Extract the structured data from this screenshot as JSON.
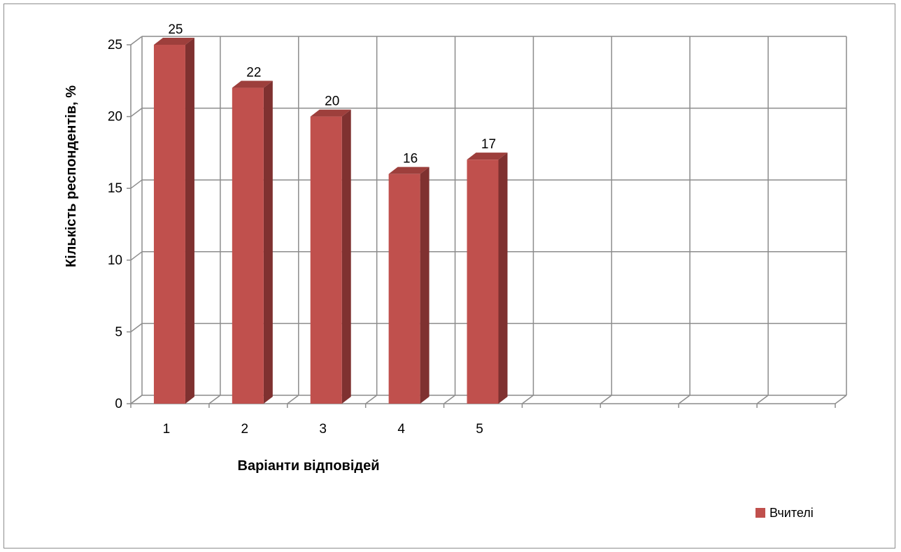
{
  "chart_data": {
    "type": "bar",
    "style": "3d-column",
    "categories": [
      "1",
      "2",
      "3",
      "4",
      "5",
      "",
      "",
      "",
      ""
    ],
    "series": [
      {
        "name": "Вчителі",
        "values": [
          25,
          22,
          20,
          16,
          17,
          null,
          null,
          null,
          null
        ],
        "color": "#c0504d"
      }
    ],
    "data_labels": [
      "25",
      "22",
      "20",
      "16",
      "17"
    ],
    "xlabel": "Варіанти відповідей",
    "ylabel": "Кількість респондентів, %",
    "ylim": [
      0,
      25
    ],
    "y_ticks": [
      "0",
      "5",
      "10",
      "15",
      "20",
      "25"
    ],
    "grid": true,
    "legend": "bottom-right"
  },
  "colors": {
    "bar_front": "#c0504d",
    "bar_side": "#7f3130",
    "bar_top": "#9d3f3c",
    "grid": "#8c8c8c"
  }
}
